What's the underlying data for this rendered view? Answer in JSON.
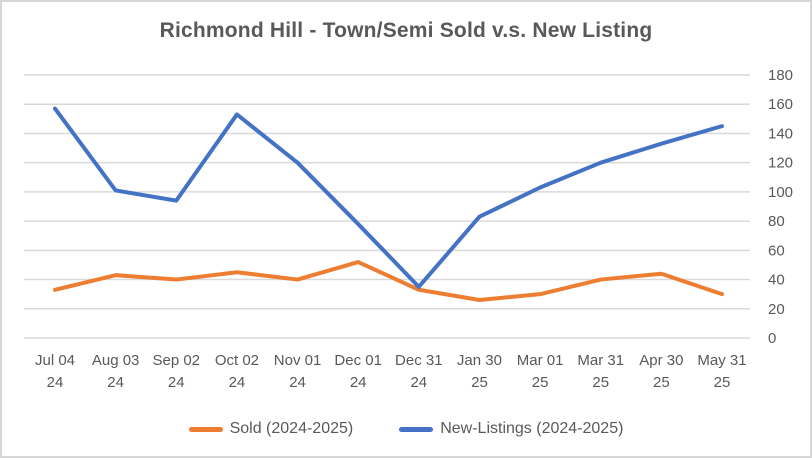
{
  "chart_data": {
    "type": "line",
    "title": "Richmond Hill - Town/Semi Sold v.s. New Listing",
    "categories": [
      [
        "Jul 04",
        "24"
      ],
      [
        "Aug 03",
        "24"
      ],
      [
        "Sep 02",
        "24"
      ],
      [
        "Oct 02",
        "24"
      ],
      [
        "Nov 01",
        "24"
      ],
      [
        "Dec 01",
        "24"
      ],
      [
        "Dec 31",
        "24"
      ],
      [
        "Jan 30",
        "25"
      ],
      [
        "Mar 01",
        "25"
      ],
      [
        "Mar 31",
        "25"
      ],
      [
        "Apr 30",
        "25"
      ],
      [
        "May 31",
        "25"
      ]
    ],
    "series": [
      {
        "name": "Sold (2024-2025)",
        "color": "#ED7D31",
        "values": [
          33,
          43,
          40,
          45,
          40,
          52,
          33,
          26,
          30,
          40,
          44,
          30
        ]
      },
      {
        "name": "New-Listings (2024-2025)",
        "color": "#4472C4",
        "values": [
          157,
          101,
          94,
          153,
          120,
          78,
          35,
          83,
          103,
          120,
          133,
          145
        ]
      }
    ],
    "ylim": [
      0,
      180
    ],
    "yticks": [
      0,
      20,
      40,
      60,
      80,
      100,
      120,
      140,
      160,
      180
    ],
    "y_axis_side": "right",
    "grid": "horizontal",
    "legend_position": "bottom",
    "colors": {
      "title_text": "#595959",
      "axis_text": "#595959",
      "gridline": "#D9D9D9",
      "border": "#D6D6D6",
      "background": "#FFFFFF"
    }
  }
}
